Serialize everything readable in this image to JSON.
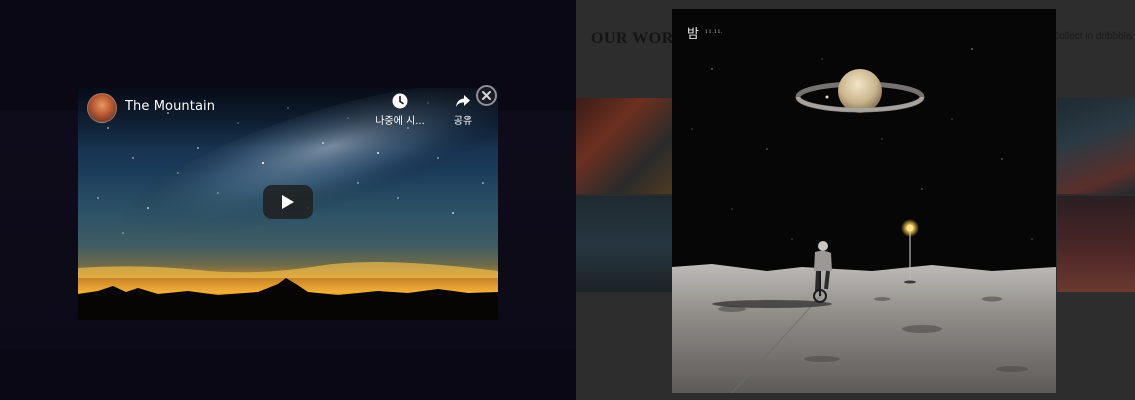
{
  "video_lightbox": {
    "video_title": "The Mountain",
    "watch_later_label": "나중에 시...",
    "share_label": "공유",
    "play_icon": "play-icon",
    "close_icon": "close-icon"
  },
  "website": {
    "section_heading": "OUR WORK",
    "dribbble_link": "Collect in dribbble",
    "dribbble_arrow": "›"
  },
  "image_lightbox": {
    "title": "밤",
    "subtitle": "11.11."
  },
  "colors": {
    "left_overlay": "#0a0815",
    "right_overlay": "#2e2d2d",
    "sky_glow": "#f2a52a",
    "space_black": "#060607"
  }
}
